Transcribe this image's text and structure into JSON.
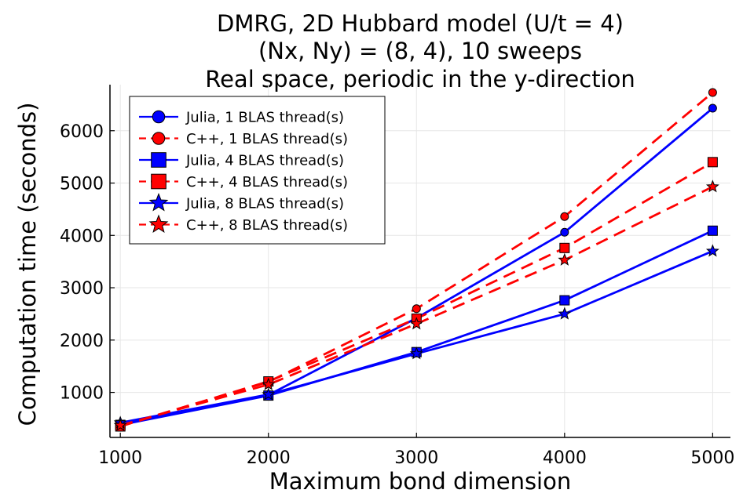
{
  "chart_data": {
    "type": "line",
    "title": [
      "DMRG, 2D Hubbard model (U/t = 4)",
      "(Nx, Ny) = (8, 4), 10 sweeps",
      "Real space, periodic in the y-direction"
    ],
    "xlabel": "Maximum bond dimension",
    "ylabel": "Computation time (seconds)",
    "x": [
      1000,
      2000,
      3000,
      4000,
      5000
    ],
    "xlim": [
      930,
      5120
    ],
    "ylim": [
      140,
      6880
    ],
    "xticks": [
      1000,
      2000,
      3000,
      4000,
      5000
    ],
    "yticks": [
      1000,
      2000,
      3000,
      4000,
      5000,
      6000
    ],
    "grid": true,
    "legend_position": "top-left",
    "series": [
      {
        "name": "Julia, 1 BLAS thread(s)",
        "color": "#0000ff",
        "dash": "solid",
        "marker": "circle",
        "values": [
          400,
          950,
          2420,
          4060,
          6430
        ]
      },
      {
        "name": "C++, 1 BLAS thread(s)",
        "color": "#ff0000",
        "dash": "dashed",
        "marker": "circle",
        "values": [
          360,
          1200,
          2600,
          4360,
          6730
        ]
      },
      {
        "name": "Julia, 4 BLAS thread(s)",
        "color": "#0000ff",
        "dash": "solid",
        "marker": "square",
        "values": [
          380,
          940,
          1770,
          2760,
          4090
        ]
      },
      {
        "name": "C++, 4 BLAS thread(s)",
        "color": "#ff0000",
        "dash": "dashed",
        "marker": "square",
        "values": [
          350,
          1210,
          2410,
          3760,
          5400
        ]
      },
      {
        "name": "Julia, 8 BLAS thread(s)",
        "color": "#0000ff",
        "dash": "solid",
        "marker": "star",
        "values": [
          420,
          960,
          1740,
          2500,
          3700
        ]
      },
      {
        "name": "C++, 8 BLAS thread(s)",
        "color": "#ff0000",
        "dash": "dashed",
        "marker": "star",
        "values": [
          370,
          1150,
          2310,
          3530,
          4930
        ]
      }
    ]
  }
}
